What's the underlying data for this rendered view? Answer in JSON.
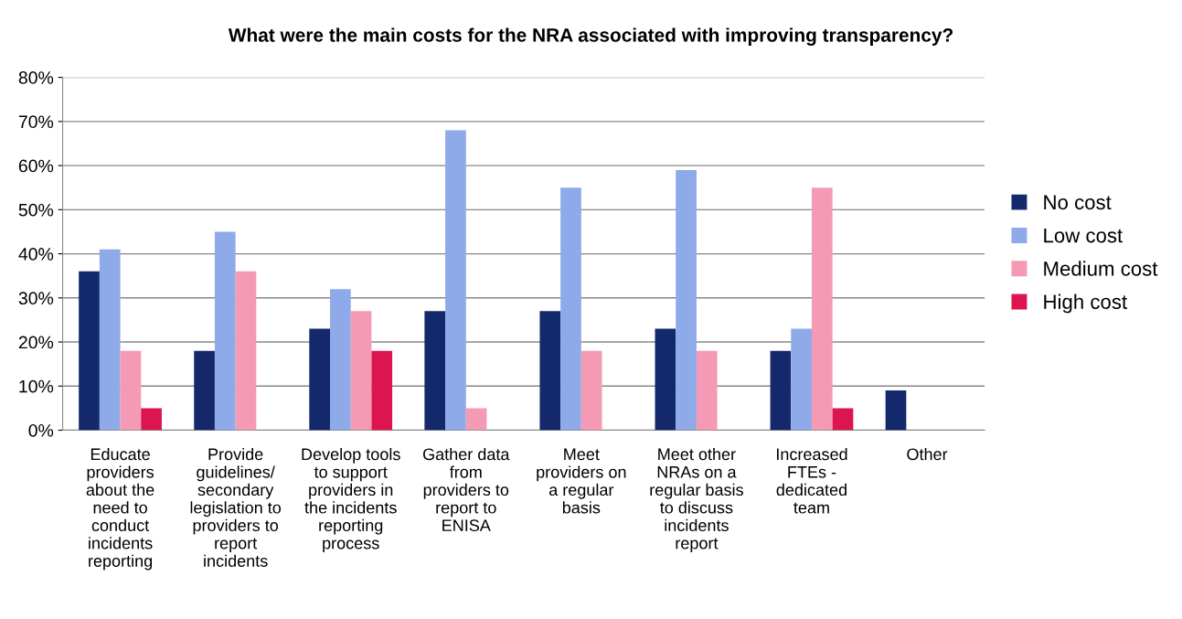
{
  "chart_data": {
    "type": "bar",
    "title": "What were the main costs for the NRA associated with improving transparency?",
    "categories": [
      "Educate\nproviders\nabout the\nneed to\nconduct\nincidents\nreporting",
      "Provide\nguidelines/\nsecondary\nlegislation to\nproviders to\nreport\nincidents",
      "Develop tools\nto support\nproviders in\nthe incidents\nreporting\nprocess",
      "Gather data\nfrom\nproviders to\nreport to\nENISA",
      "Meet\nproviders on\na regular\nbasis",
      "Meet other\nNRAs on a\nregular basis\nto discuss\nincidents\nreport",
      "Increased\nFTEs -\ndedicated\nteam",
      "Other"
    ],
    "series": [
      {
        "name": "No cost",
        "color": "#14296b",
        "values": [
          36,
          18,
          23,
          27,
          27,
          23,
          18,
          9
        ]
      },
      {
        "name": "Low cost",
        "color": "#8eaae8",
        "values": [
          41,
          45,
          32,
          68,
          55,
          59,
          23,
          0
        ]
      },
      {
        "name": "Medium cost",
        "color": "#f59ab4",
        "values": [
          18,
          36,
          27,
          5,
          18,
          18,
          55,
          0
        ]
      },
      {
        "name": "High cost",
        "color": "#dc1450",
        "values": [
          5,
          0,
          18,
          0,
          0,
          0,
          5,
          0
        ]
      }
    ],
    "ylim": [
      0,
      80
    ],
    "yticks": [
      {
        "value": 0,
        "label": "0%"
      },
      {
        "value": 10,
        "label": "10%"
      },
      {
        "value": 20,
        "label": "20%"
      },
      {
        "value": 30,
        "label": "30%"
      },
      {
        "value": 40,
        "label": "40%"
      },
      {
        "value": 50,
        "label": "50%"
      },
      {
        "value": 60,
        "label": "60%"
      },
      {
        "value": 70,
        "label": "70%"
      },
      {
        "value": 80,
        "label": "80%"
      }
    ],
    "grid": "y",
    "legend": "right"
  }
}
